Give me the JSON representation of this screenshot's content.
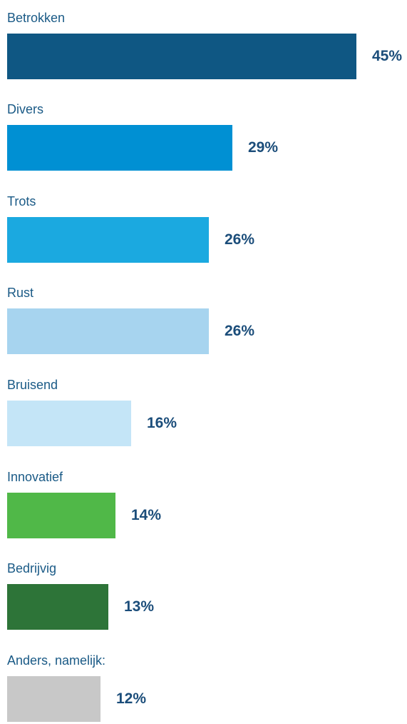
{
  "chart_data": {
    "type": "bar",
    "orientation": "horizontal",
    "title": "",
    "xlabel": "",
    "ylabel": "",
    "xlim": [
      0,
      45
    ],
    "grid": false,
    "categories": [
      "Betrokken",
      "Divers",
      "Trots",
      "Rust",
      "Bruisend",
      "Innovatief",
      "Bedrijvig",
      "Anders, namelijk:"
    ],
    "values": [
      45,
      29,
      26,
      26,
      16,
      14,
      13,
      12
    ],
    "value_labels": [
      "45%",
      "29%",
      "26%",
      "26%",
      "16%",
      "14%",
      "13%",
      "12%"
    ],
    "colors": [
      "#0f5783",
      "#0090d3",
      "#1ba9e0",
      "#a7d4ef",
      "#c4e5f7",
      "#50b848",
      "#2d7438",
      "#c8c8c8"
    ]
  }
}
